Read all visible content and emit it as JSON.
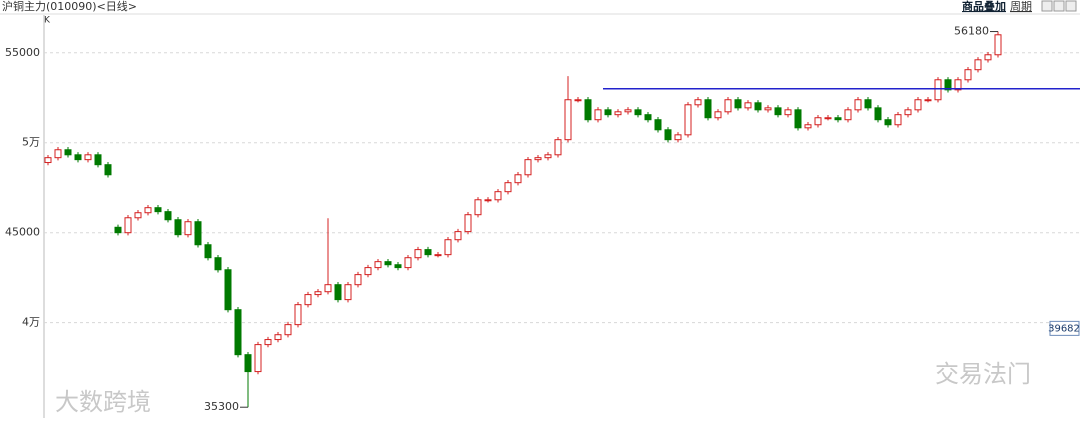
{
  "header": {
    "title": "沪铜主力(010090)<日线>",
    "kind": "K",
    "overlay": "商品叠加",
    "period": "周期"
  },
  "watermarks": [
    "大数跨境",
    "交易法门"
  ],
  "chart_data": {
    "type": "candlestick",
    "up_color": "#d42020",
    "down_color": "#007a00",
    "grid": true,
    "ylim": [
      34700,
      57100
    ],
    "yticks": [
      {
        "value": 40000,
        "label": "4万"
      },
      45000,
      {
        "value": 50000,
        "label": "5万"
      },
      55000
    ],
    "open": [
      48900,
      49170,
      49610,
      49330,
      49060,
      49330,
      48780,
      45300,
      45000,
      45830,
      46110,
      46390,
      46170,
      45720,
      44890,
      45610,
      44330,
      43610,
      42940,
      40720,
      38220,
      37280,
      38780,
      39060,
      39330,
      39890,
      41000,
      41560,
      41720,
      42110,
      41280,
      42110,
      42670,
      43060,
      43390,
      43220,
      43060,
      43610,
      44060,
      43780,
      43780,
      44610,
      45060,
      46000,
      46830,
      46830,
      47280,
      47780,
      48220,
      49060,
      49170,
      49330,
      50170,
      52390,
      52390,
      51280,
      51830,
      51560,
      51720,
      51830,
      51560,
      51280,
      50720,
      50170,
      50440,
      52110,
      52390,
      51390,
      51720,
      52390,
      51940,
      52220,
      51830,
      51940,
      51560,
      51830,
      50830,
      51000,
      51390,
      51390,
      51280,
      51830,
      52390,
      51940,
      51280,
      51000,
      51560,
      51830,
      52390,
      52390,
      53500,
      52940,
      53500,
      54060,
      54610,
      54890
    ],
    "high": [
      49320,
      49760,
      49760,
      49480,
      49480,
      49480,
      48930,
      45450,
      45980,
      46260,
      46540,
      46540,
      46320,
      45870,
      45760,
      45760,
      44480,
      43760,
      43090,
      40870,
      38370,
      38930,
      39210,
      39480,
      40040,
      41150,
      41710,
      41870,
      45800,
      42260,
      42260,
      42820,
      43210,
      43540,
      43540,
      43370,
      43760,
      44210,
      44210,
      43930,
      44760,
      45210,
      46150,
      46980,
      46980,
      47430,
      47930,
      48370,
      49210,
      49320,
      49480,
      50320,
      53700,
      52540,
      52540,
      51980,
      51980,
      51870,
      51980,
      51980,
      51710,
      51430,
      50870,
      50590,
      52260,
      52540,
      52540,
      51870,
      52540,
      52540,
      52370,
      52370,
      52090,
      52090,
      51980,
      51980,
      51150,
      51540,
      51540,
      51540,
      51980,
      52540,
      52540,
      52090,
      51430,
      51710,
      51980,
      52540,
      52540,
      53650,
      53650,
      53650,
      54210,
      54760,
      55040,
      56180
    ],
    "low": [
      48750,
      49020,
      49180,
      48910,
      48910,
      48630,
      48070,
      44850,
      44850,
      45680,
      45960,
      46020,
      45570,
      44740,
      44740,
      44180,
      43460,
      42790,
      40570,
      38070,
      35300,
      37130,
      38630,
      38910,
      39180,
      39740,
      40850,
      41410,
      41570,
      41130,
      41130,
      41960,
      42520,
      42910,
      43070,
      42910,
      42910,
      43460,
      43630,
      43630,
      43630,
      44460,
      44910,
      45850,
      46680,
      46680,
      47130,
      47630,
      48070,
      48910,
      49020,
      49180,
      50020,
      52240,
      51130,
      51130,
      51410,
      51410,
      51570,
      51410,
      51130,
      50570,
      50020,
      50020,
      50290,
      51960,
      51240,
      51240,
      51570,
      51790,
      51790,
      51680,
      51680,
      51410,
      51410,
      50680,
      50680,
      50850,
      51240,
      51130,
      51130,
      51680,
      51790,
      51130,
      50850,
      50850,
      51410,
      51680,
      52240,
      52240,
      52790,
      52790,
      53350,
      53910,
      54460,
      54740
    ],
    "close": [
      49170,
      49610,
      49330,
      49060,
      49330,
      48780,
      48220,
      45000,
      45830,
      46110,
      46390,
      46170,
      45720,
      44890,
      45610,
      44330,
      43610,
      42940,
      40720,
      38220,
      37280,
      38780,
      39060,
      39330,
      39890,
      41000,
      41560,
      41720,
      42110,
      41280,
      42110,
      42670,
      43060,
      43390,
      43220,
      43060,
      43610,
      44060,
      43780,
      43780,
      44610,
      45060,
      46000,
      46830,
      46830,
      47280,
      47780,
      48220,
      49060,
      49170,
      49330,
      50170,
      52390,
      52390,
      51280,
      51830,
      51560,
      51720,
      51830,
      51560,
      51280,
      50720,
      50170,
      50440,
      52110,
      52390,
      51390,
      51720,
      52390,
      51940,
      52220,
      51830,
      51940,
      51560,
      51830,
      50830,
      51000,
      51390,
      51390,
      51280,
      51830,
      52390,
      51940,
      51280,
      51000,
      51560,
      51830,
      52390,
      52390,
      53500,
      52940,
      53500,
      54060,
      54610,
      54890,
      56000
    ],
    "max_label": {
      "label": "56180",
      "value": 56180
    },
    "min_label": {
      "label": "35300",
      "value": 35300
    },
    "hline": {
      "value": 53000,
      "color": "#2222cc"
    },
    "price_box": {
      "label": "39682",
      "value": 39682
    }
  }
}
